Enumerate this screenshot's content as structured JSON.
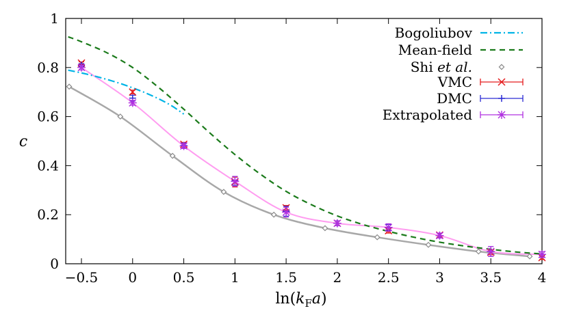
{
  "chart_data": {
    "type": "line",
    "xlabel": "ln(k_F a)",
    "ylabel": "c",
    "xlim": [
      -0.63,
      4.0
    ],
    "ylim": [
      0,
      1.0
    ],
    "x_ticks": [
      "−0.5",
      "0",
      "0.5",
      "1",
      "1.5",
      "2",
      "2.5",
      "3",
      "3.5",
      "4"
    ],
    "y_ticks": [
      "0",
      "0.2",
      "0.4",
      "0.6",
      "0.8",
      "1"
    ],
    "legend_position": "top-right",
    "grid": false,
    "series": [
      {
        "name": "Bogoliubov",
        "kind": "curve",
        "style": "dash-dot",
        "color": "#00b4e6",
        "points": [
          [
            -0.63,
            0.789
          ],
          [
            -0.5,
            0.778
          ],
          [
            -0.4,
            0.768
          ],
          [
            -0.3,
            0.757
          ],
          [
            -0.2,
            0.745
          ],
          [
            -0.1,
            0.732
          ],
          [
            0.0,
            0.717
          ],
          [
            0.1,
            0.701
          ],
          [
            0.2,
            0.683
          ],
          [
            0.3,
            0.663
          ],
          [
            0.4,
            0.639
          ],
          [
            0.5,
            0.61
          ]
        ]
      },
      {
        "name": "Mean-field",
        "kind": "curve",
        "style": "dashed",
        "color": "#1a7a1a",
        "points": [
          [
            -0.63,
            0.925
          ],
          [
            -0.5,
            0.905
          ],
          [
            -0.25,
            0.86
          ],
          [
            0.0,
            0.8
          ],
          [
            0.25,
            0.72
          ],
          [
            0.5,
            0.63
          ],
          [
            0.75,
            0.535
          ],
          [
            1.0,
            0.445
          ],
          [
            1.25,
            0.365
          ],
          [
            1.5,
            0.295
          ],
          [
            1.75,
            0.24
          ],
          [
            2.0,
            0.195
          ],
          [
            2.25,
            0.16
          ],
          [
            2.5,
            0.132
          ],
          [
            2.75,
            0.108
          ],
          [
            3.0,
            0.088
          ],
          [
            3.25,
            0.072
          ],
          [
            3.5,
            0.059
          ],
          [
            3.75,
            0.048
          ],
          [
            4.0,
            0.04
          ]
        ]
      },
      {
        "name": "Shi et al.",
        "kind": "points_curve",
        "color": "#999999",
        "points": [
          [
            -0.62,
            0.722
          ],
          [
            -0.12,
            0.6
          ],
          [
            0.39,
            0.44
          ],
          [
            0.89,
            0.293
          ],
          [
            1.38,
            0.2
          ],
          [
            1.88,
            0.145
          ],
          [
            2.39,
            0.108
          ],
          [
            2.89,
            0.077
          ],
          [
            3.38,
            0.05
          ],
          [
            3.88,
            0.03
          ]
        ]
      },
      {
        "name": "VMC",
        "kind": "errorbars",
        "marker": "x",
        "color": "#e41a1c",
        "points": [
          [
            -0.5,
            0.818,
            0.005
          ],
          [
            0.0,
            0.7,
            0.008
          ],
          [
            0.5,
            0.487,
            0.008
          ],
          [
            1.0,
            0.333,
            0.02
          ],
          [
            1.5,
            0.228,
            0.01
          ],
          [
            2.0,
            0.165,
            0.01
          ],
          [
            2.5,
            0.135,
            0.01
          ],
          [
            3.0,
            0.117,
            0.008
          ],
          [
            3.5,
            0.047,
            0.01
          ],
          [
            4.0,
            0.025,
            0.008
          ]
        ]
      },
      {
        "name": "DMC",
        "kind": "errorbars",
        "marker": "+",
        "color": "#2a2ad4",
        "points": [
          [
            -0.5,
            0.81,
            0.006
          ],
          [
            0.0,
            0.675,
            0.012
          ],
          [
            0.5,
            0.482,
            0.01
          ],
          [
            1.0,
            0.338,
            0.018
          ],
          [
            1.5,
            0.214,
            0.02
          ],
          [
            2.0,
            0.165,
            0.01
          ],
          [
            2.5,
            0.148,
            0.012
          ],
          [
            3.0,
            0.115,
            0.01
          ],
          [
            3.5,
            0.05,
            0.02
          ],
          [
            4.0,
            0.038,
            0.012
          ]
        ]
      },
      {
        "name": "Extrapolated",
        "kind": "errorbars_curve",
        "marker": "*",
        "color": "#b030e0",
        "curve_color": "#ff9cf0",
        "points": [
          [
            -0.5,
            0.8,
            0.01
          ],
          [
            0.0,
            0.656,
            0.01
          ],
          [
            0.5,
            0.48,
            0.01
          ],
          [
            1.0,
            0.336,
            0.02
          ],
          [
            1.5,
            0.21,
            0.02
          ],
          [
            2.0,
            0.165,
            0.01
          ],
          [
            2.5,
            0.148,
            0.015
          ],
          [
            3.0,
            0.115,
            0.01
          ],
          [
            3.5,
            0.05,
            0.02
          ],
          [
            4.0,
            0.038,
            0.012
          ]
        ]
      }
    ]
  }
}
